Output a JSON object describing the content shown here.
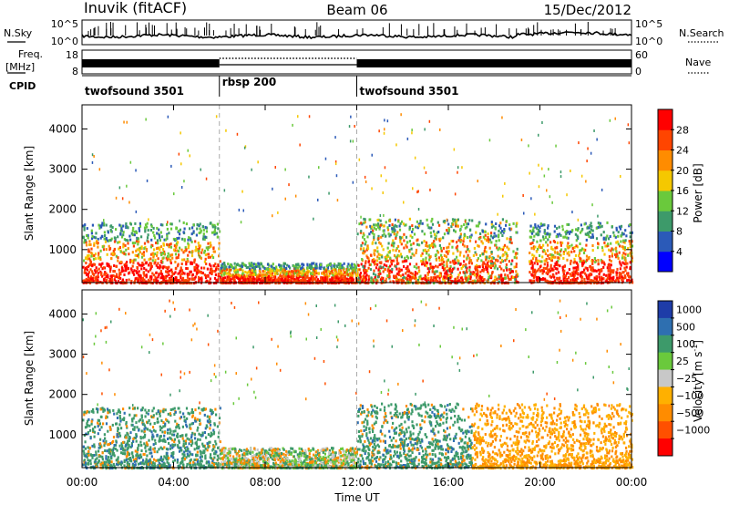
{
  "header": {
    "station": "Inuvik (fitACF)",
    "beam": "Beam 06",
    "date": "15/Dec/2012"
  },
  "top_panel": {
    "left_label": "N.Sky",
    "right_label": "N.Search",
    "left_ticks": [
      "10^5",
      "10^0"
    ],
    "right_ticks": [
      "10^5",
      "10^0"
    ]
  },
  "freq_panel": {
    "left_label_line1": "Freq.",
    "left_label_line2": "[MHz]",
    "left_ticks": [
      "18",
      "8"
    ],
    "right_ticks": [
      "60",
      "0"
    ],
    "right_label": "Nave"
  },
  "cpid": {
    "label": "CPID",
    "segments": [
      {
        "name": "twofsound 3501",
        "start_h": 0,
        "end_h": 6
      },
      {
        "name": "rbsp 200",
        "start_h": 6,
        "end_h": 12
      },
      {
        "name": "twofsound 3501",
        "start_h": 12,
        "end_h": 24
      }
    ]
  },
  "x_axis": {
    "ticks": [
      "00:00",
      "04:00",
      "08:00",
      "12:00",
      "16:00",
      "20:00",
      "00:00"
    ],
    "tick_hours": [
      0,
      4,
      8,
      12,
      16,
      20,
      24
    ],
    "label": "Time UT",
    "range_h": [
      0,
      24
    ]
  },
  "chart_data": [
    {
      "type": "heatmap",
      "quantity": "power",
      "ylabel": "Slant Range [km]",
      "yticks": [
        1000,
        2000,
        3000,
        4000
      ],
      "ylim": [
        180,
        4600
      ],
      "colorbar_label": "Power [dB]",
      "colorbar_ticks": [
        "4",
        "8",
        "12",
        "16",
        "20",
        "24",
        "28"
      ],
      "colorbar_colors": [
        "#0000ff",
        "#2b5ab8",
        "#3d9a6a",
        "#6ac93c",
        "#f5c800",
        "#ff8c00",
        "#ff4500",
        "#ff0000"
      ],
      "scatter_regions": [
        {
          "t": [
            0.0,
            6.0
          ],
          "r": [
            200,
            1700
          ],
          "level": "high"
        },
        {
          "t": [
            6.0,
            12.0
          ],
          "r": [
            200,
            700
          ],
          "level": "high"
        },
        {
          "t": [
            12.0,
            19.0
          ],
          "r": [
            200,
            1800
          ],
          "level": "mixed"
        },
        {
          "t": [
            19.5,
            24.0
          ],
          "r": [
            200,
            1700
          ],
          "level": "high"
        }
      ]
    },
    {
      "type": "heatmap",
      "quantity": "velocity",
      "ylabel": "Slant Range [km]",
      "yticks": [
        1000,
        2000,
        3000,
        4000
      ],
      "ylim": [
        180,
        4600
      ],
      "colorbar_label": "Velocity [m s^-1]",
      "colorbar_ticks": [
        "1000",
        "500",
        "100",
        "25",
        "−25",
        "−100",
        "−500",
        "−1000"
      ],
      "colorbar_colors": [
        "#1e3ca8",
        "#2e6fb0",
        "#3d9a6a",
        "#6ac93c",
        "#c8c8c8",
        "#ffb000",
        "#ff8c00",
        "#ff5000",
        "#ff0000"
      ],
      "scatter_regions": [
        {
          "t": [
            0.0,
            6.0
          ],
          "r": [
            200,
            1700
          ],
          "level": "positive"
        },
        {
          "t": [
            6.0,
            12.0
          ],
          "r": [
            200,
            700
          ],
          "level": "mixed"
        },
        {
          "t": [
            12.0,
            17.0
          ],
          "r": [
            200,
            1800
          ],
          "level": "positive"
        },
        {
          "t": [
            17.0,
            24.0
          ],
          "r": [
            200,
            1800
          ],
          "level": "negative"
        }
      ]
    }
  ]
}
